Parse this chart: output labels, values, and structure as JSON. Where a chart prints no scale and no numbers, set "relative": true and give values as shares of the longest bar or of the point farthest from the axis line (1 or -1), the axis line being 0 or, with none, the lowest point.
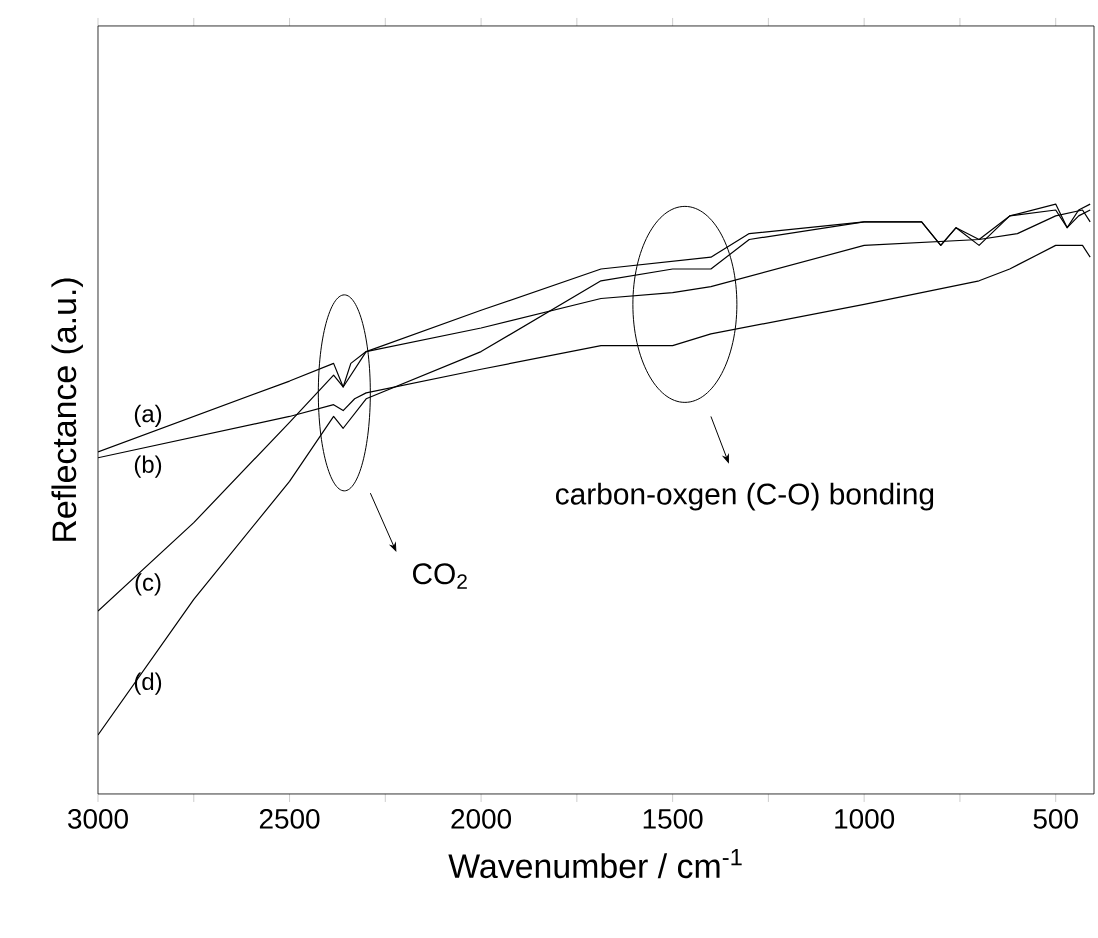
{
  "chart_data": {
    "type": "line",
    "relative": true,
    "xlabel": "Wavenumber / cm$^{-1}$",
    "ylabel": "Reflectance (a.u.)",
    "xlim": [
      3000,
      400
    ],
    "xticks": [
      3000,
      {
        "value": 2750,
        "label": null
      },
      2500,
      {
        "value": 2250,
        "label": null
      },
      2000,
      {
        "value": 1750,
        "label": null
      },
      1500,
      {
        "value": 1250,
        "label": null
      },
      1000,
      {
        "value": 750,
        "label": null
      },
      500
    ],
    "marker": "none",
    "line_style": "solid",
    "legend": false,
    "grid": false,
    "tick_labels": "x",
    "series": [
      {
        "name": "(a)",
        "color": "#000000",
        "x": [
          3000,
          2500,
          2385,
          2360,
          2340,
          2300,
          2000,
          1687,
          1500,
          1400,
          1000,
          700,
          600,
          500,
          430,
          410
        ],
        "values": [
          0.58,
          0.7,
          0.73,
          0.69,
          0.73,
          0.75,
          0.79,
          0.84,
          0.85,
          0.86,
          0.93,
          0.94,
          0.95,
          0.98,
          0.99,
          0.97
        ]
      },
      {
        "name": "(b)",
        "color": "#000000",
        "x": [
          3000,
          2500,
          2385,
          2360,
          2330,
          2300,
          2000,
          1687,
          1500,
          1400,
          1000,
          700,
          620,
          500,
          430,
          410
        ],
        "values": [
          0.57,
          0.64,
          0.66,
          0.65,
          0.67,
          0.68,
          0.72,
          0.76,
          0.76,
          0.78,
          0.83,
          0.87,
          0.89,
          0.93,
          0.93,
          0.91
        ]
      },
      {
        "name": "(c)",
        "color": "#000000",
        "x": [
          3000,
          2750,
          2500,
          2385,
          2360,
          2300,
          2000,
          1687,
          1400,
          1300,
          1000,
          850,
          800,
          760,
          700,
          620,
          500,
          470,
          440,
          410
        ],
        "values": [
          0.31,
          0.46,
          0.63,
          0.71,
          0.69,
          0.75,
          0.82,
          0.89,
          0.91,
          0.95,
          0.97,
          0.97,
          0.93,
          0.96,
          0.94,
          0.98,
          1.0,
          0.96,
          0.99,
          1.0
        ]
      },
      {
        "name": "(d)",
        "color": "#000000",
        "x": [
          3000,
          2750,
          2500,
          2385,
          2360,
          2300,
          2000,
          1687,
          1500,
          1400,
          1300,
          1000,
          850,
          800,
          760,
          700,
          620,
          500,
          470,
          440,
          410
        ],
        "values": [
          0.1,
          0.33,
          0.53,
          0.64,
          0.62,
          0.67,
          0.75,
          0.87,
          0.89,
          0.89,
          0.94,
          0.97,
          0.97,
          0.93,
          0.96,
          0.93,
          0.98,
          0.99,
          0.96,
          0.98,
          0.99
        ]
      }
    ],
    "annotations": [
      "CO$_{2}$",
      "carbon-oxgen (C-O) bonding"
    ]
  }
}
